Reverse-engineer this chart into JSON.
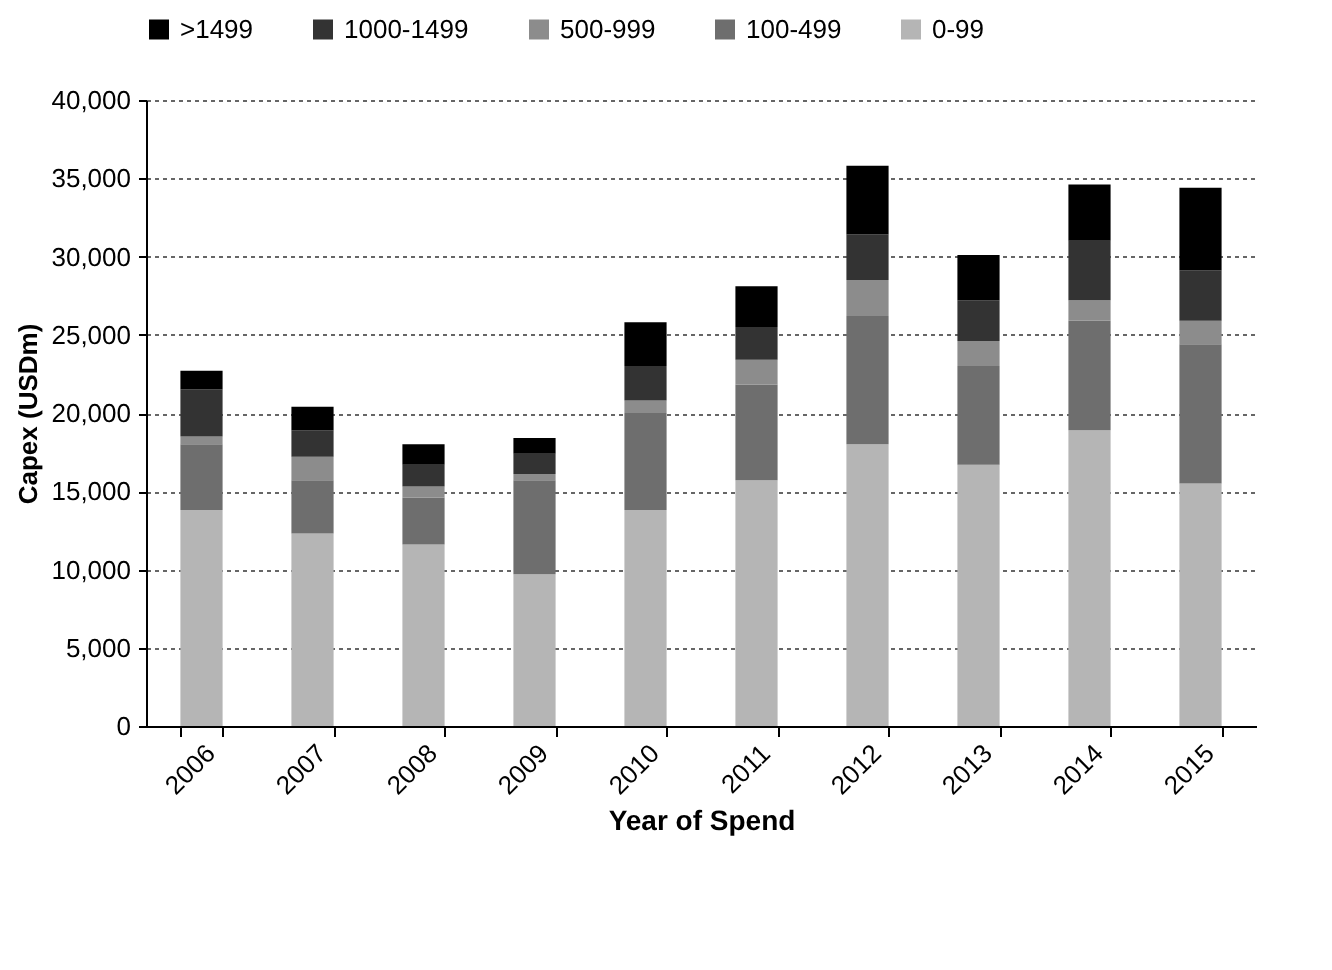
{
  "chart_data": {
    "type": "bar",
    "stacked": true,
    "xlabel": "Year of Spend",
    "ylabel": "Capex (USDm)",
    "categories": [
      "2006",
      "2007",
      "2008",
      "2009",
      "2010",
      "2011",
      "2012",
      "2013",
      "2014",
      "2015"
    ],
    "series": [
      {
        "name": "0-99",
        "color": "#b5b5b5",
        "values": [
          13800,
          12300,
          11600,
          9700,
          13800,
          15700,
          18000,
          16700,
          18900,
          15500
        ]
      },
      {
        "name": "100-499",
        "color": "#6e6e6e",
        "values": [
          4200,
          3400,
          3000,
          6000,
          6200,
          6100,
          8200,
          6300,
          7000,
          8900
        ]
      },
      {
        "name": "500-999",
        "color": "#8c8c8c",
        "values": [
          500,
          1500,
          700,
          400,
          800,
          1600,
          2300,
          1600,
          1300,
          1500
        ]
      },
      {
        "name": "1000-1499",
        "color": "#333333",
        "values": [
          3000,
          1700,
          1400,
          1300,
          2200,
          2100,
          2900,
          2600,
          3800,
          3200
        ]
      },
      {
        "name": ">1499",
        "color": "#000000",
        "values": [
          1200,
          1500,
          1300,
          1000,
          2800,
          2600,
          4400,
          2900,
          3600,
          5300
        ]
      }
    ],
    "ylim": [
      0,
      40000
    ],
    "yticks": [
      {
        "value": 0,
        "label": "0"
      },
      {
        "value": 5000,
        "label": "5,000"
      },
      {
        "value": 10000,
        "label": "10,000"
      },
      {
        "value": 15000,
        "label": "15,000"
      },
      {
        "value": 20000,
        "label": "20,000"
      },
      {
        "value": 25000,
        "label": "25,000"
      },
      {
        "value": 30000,
        "label": "30,000"
      },
      {
        "value": 35000,
        "label": "35,000"
      },
      {
        "value": 40000,
        "label": "40,000"
      }
    ],
    "grid": "y",
    "legend": "top"
  }
}
